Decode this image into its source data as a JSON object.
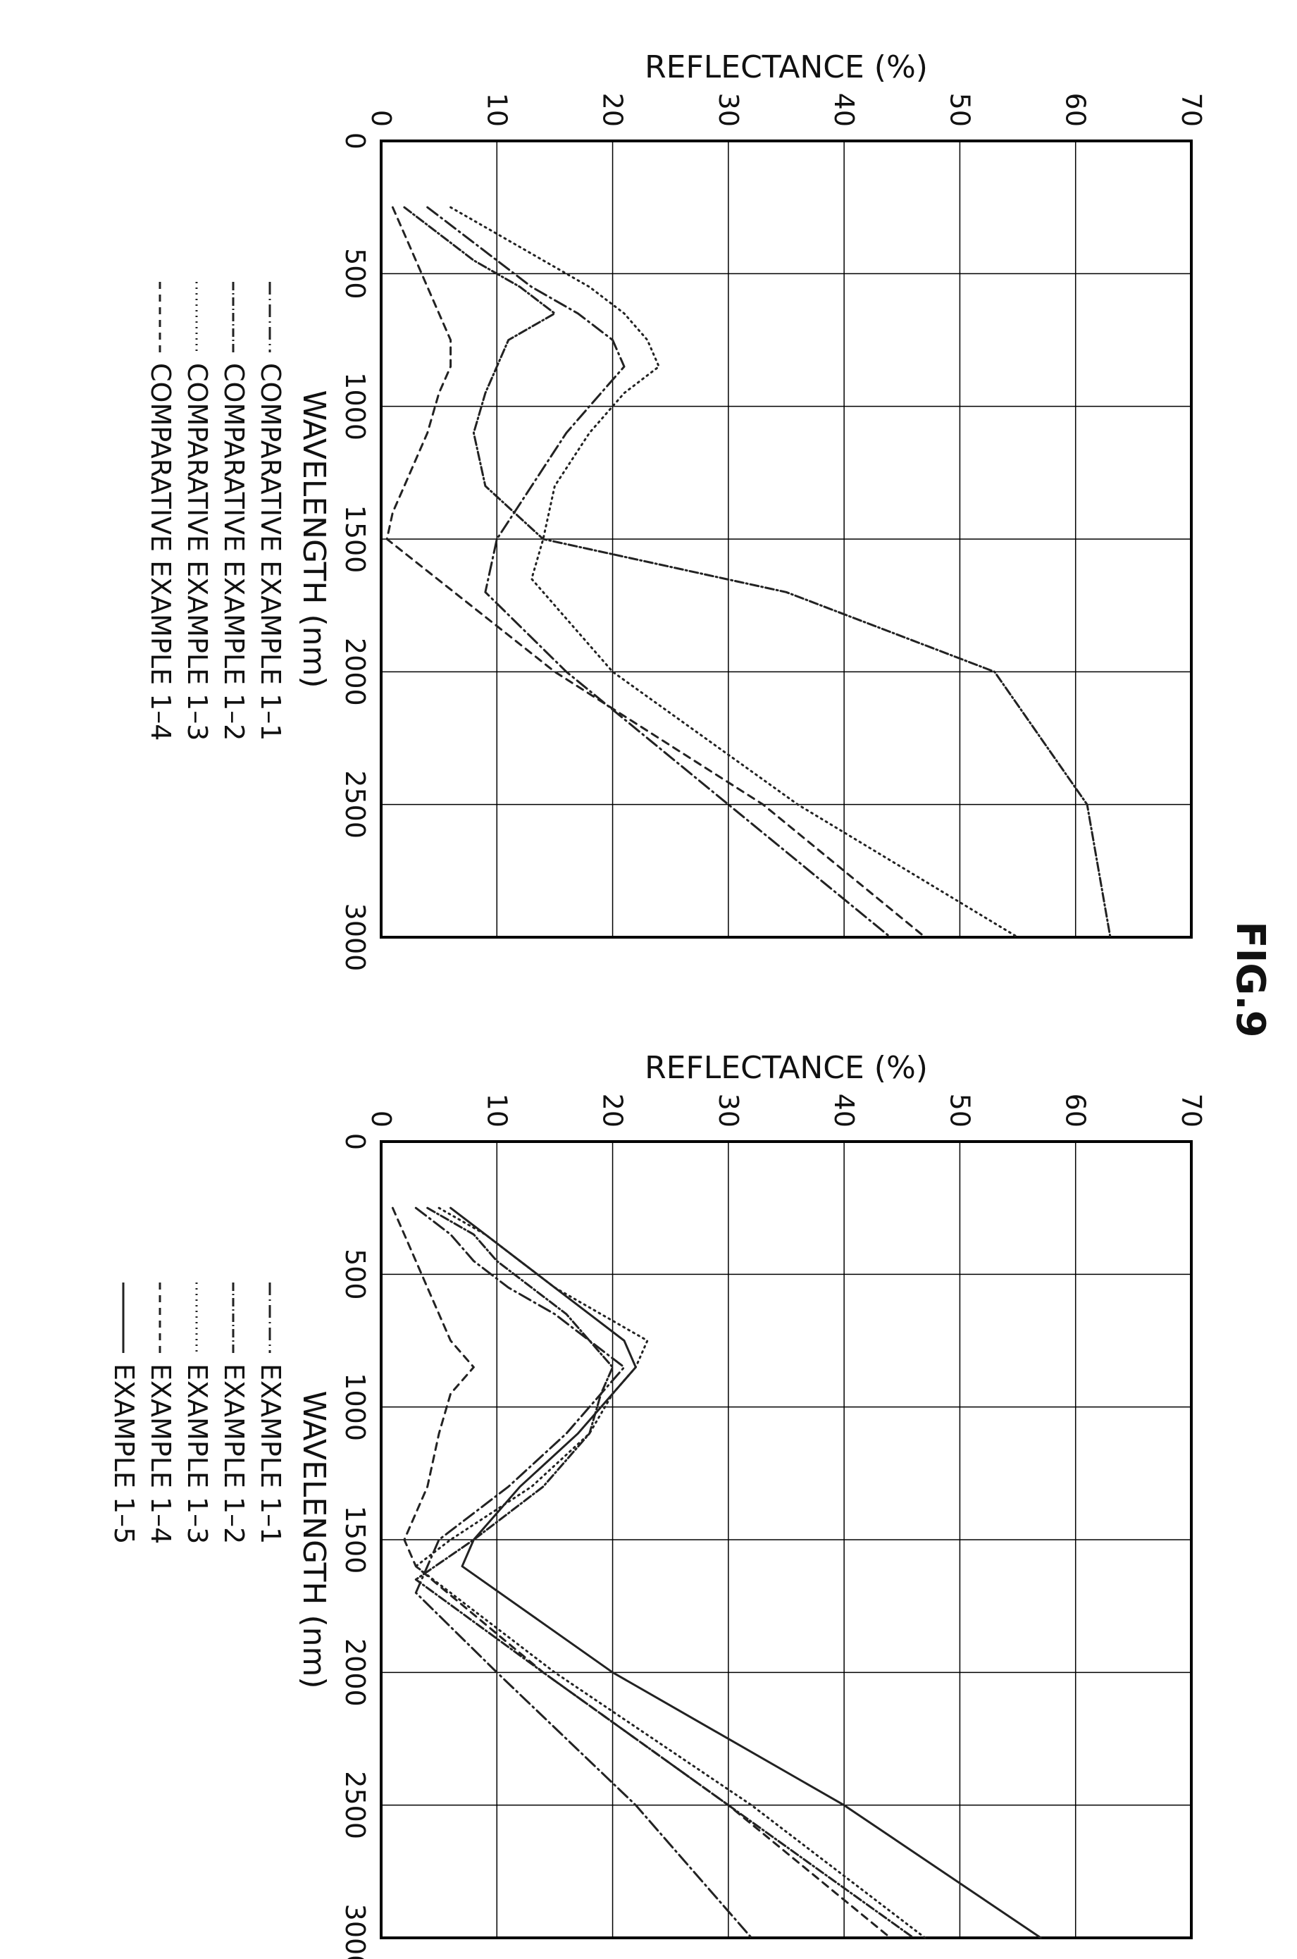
{
  "figure_label": "FIG.9",
  "chart_data": [
    {
      "type": "line",
      "title": "",
      "xlabel": "WAVELENGTH (nm)",
      "ylabel": "REFLECTANCE (%)",
      "xlim": [
        0,
        3000
      ],
      "ylim": [
        0,
        70
      ],
      "xticks": [
        0,
        500,
        1000,
        1500,
        2000,
        2500,
        3000
      ],
      "yticks": [
        0,
        10,
        20,
        30,
        40,
        50,
        60,
        70
      ],
      "grid": true,
      "legend_position": "bottom",
      "series": [
        {
          "name": "EXAMPLE 1–1",
          "dash": "18 6 2 6",
          "x": [
            250,
            350,
            450,
            550,
            650,
            750,
            850,
            950,
            1100,
            1300,
            1500,
            1700,
            2000,
            2500,
            3000
          ],
          "y": [
            3,
            6,
            8,
            11,
            15,
            18,
            21,
            19,
            16,
            11,
            5,
            3,
            10,
            22,
            32
          ]
        },
        {
          "name": "EXAMPLE 1–2",
          "dash": "12 4 2 4",
          "x": [
            250,
            350,
            450,
            550,
            650,
            750,
            850,
            950,
            1100,
            1300,
            1500,
            1650,
            2000,
            2500,
            3000
          ],
          "y": [
            4,
            8,
            10,
            13,
            16,
            18,
            20,
            19,
            18,
            14,
            8,
            3,
            14,
            30,
            46
          ]
        },
        {
          "name": "EXAMPLE 1–3",
          "dash": "2 6",
          "x": [
            250,
            350,
            450,
            550,
            650,
            750,
            850,
            950,
            1100,
            1300,
            1500,
            1600,
            2000,
            2500,
            3000
          ],
          "y": [
            5,
            9,
            12,
            15,
            19,
            23,
            22,
            20,
            18,
            13,
            6,
            3,
            15,
            32,
            47
          ]
        },
        {
          "name": "EXAMPLE 1–4",
          "dash": "10 8",
          "x": [
            250,
            350,
            450,
            550,
            650,
            750,
            850,
            950,
            1100,
            1300,
            1500,
            1600,
            2000,
            2500,
            3000
          ],
          "y": [
            1,
            2,
            3,
            4,
            5,
            6,
            8,
            6,
            5,
            4,
            2,
            3,
            14,
            30,
            44
          ]
        },
        {
          "name": "EXAMPLE 1–5",
          "dash": "",
          "x": [
            250,
            350,
            450,
            550,
            650,
            750,
            850,
            950,
            1100,
            1300,
            1500,
            1600,
            2000,
            2500,
            3000
          ],
          "y": [
            6,
            9,
            12,
            15,
            18,
            21,
            22,
            20,
            17,
            12,
            8,
            7,
            20,
            40,
            57
          ]
        }
      ]
    },
    {
      "type": "line",
      "title": "",
      "xlabel": "WAVELENGTH (nm)",
      "ylabel": "REFLECTANCE (%)",
      "xlim": [
        0,
        3000
      ],
      "ylim": [
        0,
        70
      ],
      "xticks": [
        0,
        500,
        1000,
        1500,
        2000,
        2500,
        3000
      ],
      "yticks": [
        0,
        10,
        20,
        30,
        40,
        50,
        60,
        70
      ],
      "grid": true,
      "legend_position": "bottom",
      "series": [
        {
          "name": "COMPARATIVE EXAMPLE 1–1",
          "dash": "18 6 2 6",
          "x": [
            250,
            350,
            450,
            550,
            650,
            750,
            850,
            950,
            1100,
            1300,
            1500,
            1700,
            2000,
            2500,
            3000
          ],
          "y": [
            4,
            7,
            10,
            13,
            17,
            20,
            21,
            19,
            16,
            13,
            10,
            9,
            16,
            30,
            44
          ]
        },
        {
          "name": "COMPARATIVE EXAMPLE 1–2",
          "dash": "12 4 2 4",
          "x": [
            250,
            350,
            450,
            550,
            650,
            750,
            850,
            950,
            1100,
            1300,
            1500,
            1700,
            2000,
            2500,
            3000
          ],
          "y": [
            2,
            5,
            8,
            12,
            15,
            11,
            10,
            9,
            8,
            9,
            14,
            35,
            53,
            61,
            63
          ]
        },
        {
          "name": "COMPARATIVE EXAMPLE 1–3",
          "dash": "2 6",
          "x": [
            250,
            350,
            450,
            550,
            650,
            750,
            850,
            950,
            1100,
            1300,
            1500,
            1650,
            2000,
            2500,
            3000
          ],
          "y": [
            6,
            10,
            14,
            18,
            21,
            23,
            24,
            21,
            18,
            15,
            14,
            13,
            20,
            36,
            55
          ]
        },
        {
          "name": "COMPARATIVE EXAMPLE 1–4",
          "dash": "10 8",
          "x": [
            250,
            350,
            450,
            550,
            650,
            750,
            850,
            950,
            1100,
            1200,
            1300,
            1400,
            1500,
            2000,
            2500,
            3000
          ],
          "y": [
            1,
            2,
            3,
            4,
            5,
            6,
            6,
            5,
            4,
            3,
            2,
            1,
            0.5,
            15,
            33,
            47
          ]
        }
      ]
    }
  ]
}
